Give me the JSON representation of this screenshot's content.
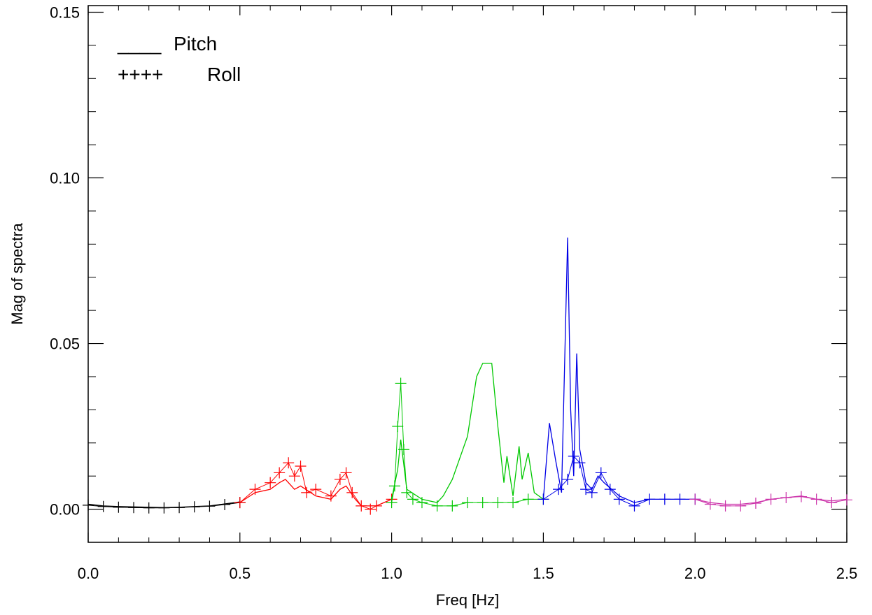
{
  "chart_data": {
    "type": "line",
    "title": "",
    "xlabel": "Freq [Hz]",
    "ylabel": "Mag of spectra",
    "xlim": [
      0.0,
      2.5
    ],
    "ylim": [
      -0.01,
      0.152
    ],
    "x_ticks": [
      0.0,
      0.5,
      1.0,
      1.5,
      2.0,
      2.5
    ],
    "x_tick_labels": [
      "0.0",
      "0.5",
      "1.0",
      "1.5",
      "2.0",
      "2.5"
    ],
    "y_ticks": [
      0.0,
      0.05,
      0.1,
      0.15
    ],
    "y_tick_labels": [
      "0.00",
      "0.05",
      "0.10",
      "0.15"
    ],
    "grid": false,
    "legend": {
      "placement": "top-left",
      "entries": [
        {
          "marker": "____",
          "label": "Pitch",
          "style": "line"
        },
        {
          "marker": "++++",
          "label": "Roll",
          "style": "plus"
        }
      ]
    },
    "series": [
      {
        "color": "#000000",
        "style": "line",
        "x": [
          0.0,
          0.05,
          0.1,
          0.15,
          0.2,
          0.25,
          0.3,
          0.35,
          0.4,
          0.45,
          0.5
        ],
        "y": [
          0.0015,
          0.001,
          0.0008,
          0.0007,
          0.0006,
          0.0005,
          0.0006,
          0.0008,
          0.001,
          0.0016,
          0.0022
        ]
      },
      {
        "color": "#000000",
        "style": "plus",
        "x": [
          0.0,
          0.05,
          0.1,
          0.15,
          0.2,
          0.25,
          0.3,
          0.35,
          0.4,
          0.45,
          0.5
        ],
        "y": [
          0.0012,
          0.0008,
          0.0006,
          0.0005,
          0.0004,
          0.0004,
          0.0005,
          0.0007,
          0.0009,
          0.0014,
          0.002
        ]
      },
      {
        "color": "#ff0000",
        "style": "line",
        "x": [
          0.5,
          0.55,
          0.6,
          0.63,
          0.65,
          0.68,
          0.7,
          0.75,
          0.8,
          0.83,
          0.85,
          0.88,
          0.9,
          0.95,
          1.0
        ],
        "y": [
          0.002,
          0.005,
          0.006,
          0.008,
          0.009,
          0.006,
          0.007,
          0.004,
          0.003,
          0.006,
          0.007,
          0.003,
          0.001,
          0.001,
          0.003
        ]
      },
      {
        "color": "#ff0000",
        "style": "plus",
        "x": [
          0.5,
          0.55,
          0.6,
          0.63,
          0.66,
          0.68,
          0.7,
          0.72,
          0.75,
          0.8,
          0.83,
          0.85,
          0.87,
          0.9,
          0.93,
          0.95,
          1.0
        ],
        "y": [
          0.002,
          0.006,
          0.008,
          0.011,
          0.014,
          0.01,
          0.013,
          0.005,
          0.006,
          0.004,
          0.009,
          0.011,
          0.005,
          0.001,
          0.0,
          0.001,
          0.003
        ]
      },
      {
        "color": "#00c800",
        "style": "line",
        "x": [
          1.0,
          1.02,
          1.03,
          1.05,
          1.1,
          1.15,
          1.17,
          1.2,
          1.25,
          1.28,
          1.3,
          1.33,
          1.35,
          1.37,
          1.38,
          1.4,
          1.42,
          1.43,
          1.45,
          1.47,
          1.5
        ],
        "y": [
          0.003,
          0.012,
          0.021,
          0.006,
          0.003,
          0.002,
          0.004,
          0.009,
          0.022,
          0.04,
          0.044,
          0.044,
          0.025,
          0.008,
          0.016,
          0.004,
          0.019,
          0.009,
          0.017,
          0.005,
          0.003
        ]
      },
      {
        "color": "#00c800",
        "style": "plus",
        "x": [
          1.0,
          1.01,
          1.02,
          1.03,
          1.04,
          1.05,
          1.07,
          1.1,
          1.15,
          1.2,
          1.25,
          1.3,
          1.35,
          1.4,
          1.45,
          1.5
        ],
        "y": [
          0.002,
          0.007,
          0.025,
          0.038,
          0.018,
          0.005,
          0.003,
          0.002,
          0.001,
          0.001,
          0.002,
          0.002,
          0.002,
          0.002,
          0.003,
          0.003
        ]
      },
      {
        "color": "#0000e6",
        "style": "line",
        "x": [
          1.5,
          1.52,
          1.54,
          1.56,
          1.58,
          1.59,
          1.6,
          1.61,
          1.62,
          1.64,
          1.66,
          1.68,
          1.7,
          1.75,
          1.8,
          1.85,
          1.9,
          1.95,
          2.0
        ],
        "y": [
          0.003,
          0.026,
          0.015,
          0.005,
          0.082,
          0.03,
          0.01,
          0.047,
          0.018,
          0.008,
          0.006,
          0.01,
          0.008,
          0.004,
          0.002,
          0.003,
          0.003,
          0.003,
          0.003
        ]
      },
      {
        "color": "#0000e6",
        "style": "plus",
        "x": [
          1.5,
          1.55,
          1.58,
          1.6,
          1.62,
          1.64,
          1.66,
          1.69,
          1.72,
          1.75,
          1.8,
          1.85,
          1.9,
          1.95,
          2.0
        ],
        "y": [
          0.003,
          0.006,
          0.009,
          0.016,
          0.014,
          0.006,
          0.005,
          0.011,
          0.006,
          0.003,
          0.001,
          0.003,
          0.003,
          0.003,
          0.003
        ]
      },
      {
        "color": "#cc33aa",
        "style": "line",
        "x": [
          2.0,
          2.05,
          2.1,
          2.15,
          2.2,
          2.25,
          2.3,
          2.35,
          2.4,
          2.45,
          2.5
        ],
        "y": [
          0.003,
          0.002,
          0.0015,
          0.0015,
          0.002,
          0.003,
          0.0035,
          0.004,
          0.003,
          0.0025,
          0.003
        ]
      },
      {
        "color": "#cc33aa",
        "style": "plus",
        "x": [
          2.0,
          2.05,
          2.1,
          2.15,
          2.2,
          2.25,
          2.3,
          2.35,
          2.4,
          2.45,
          2.5
        ],
        "y": [
          0.003,
          0.0015,
          0.001,
          0.001,
          0.0018,
          0.003,
          0.0035,
          0.0038,
          0.003,
          0.002,
          0.0028
        ]
      }
    ]
  }
}
